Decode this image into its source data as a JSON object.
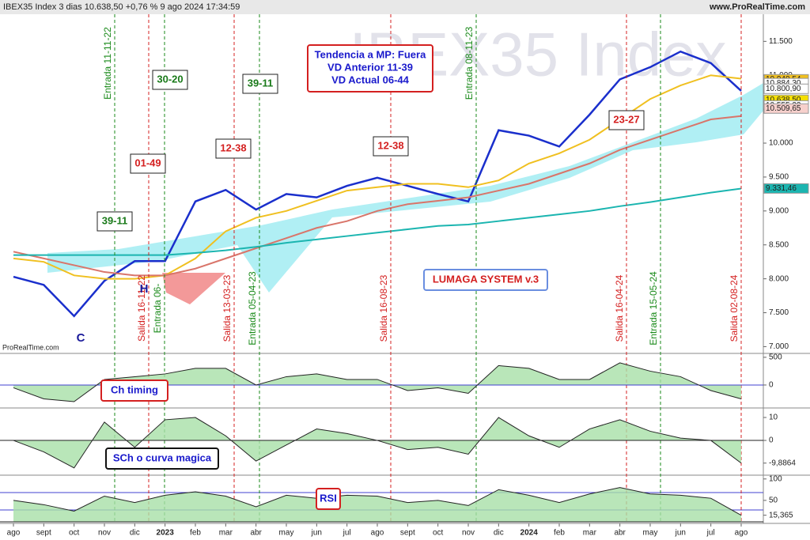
{
  "header": {
    "title": "IBEX35 Index 3 dias 10.638,50 +0,76 % 9 ago 2024 17:34:59",
    "site": "www.ProRealTime.com",
    "credit": "ProRealTime.com",
    "watermark": "IBEX35 Index"
  },
  "chart_data": [
    {
      "type": "line",
      "categories": [
        "ago",
        "sept",
        "oct",
        "nov",
        "dic",
        "2023",
        "feb",
        "mar",
        "abr",
        "may",
        "jun",
        "jul",
        "ago",
        "sept",
        "oct",
        "nov",
        "dic",
        "2024",
        "feb",
        "mar",
        "abr",
        "may",
        "jun",
        "jul",
        "ago"
      ],
      "series": [
        {
          "color": "#1a2fcc",
          "values": [
            8030,
            7910,
            7450,
            7970,
            8260,
            8260,
            9140,
            9310,
            9020,
            9250,
            9200,
            9370,
            9490,
            9370,
            9250,
            9140,
            10190,
            10110,
            9950,
            10420,
            10940,
            11120,
            11350,
            11180,
            10770
          ]
        },
        {
          "color": "#f0c020",
          "values": [
            8300,
            8250,
            8050,
            8000,
            8000,
            8050,
            8300,
            8700,
            8900,
            9000,
            9150,
            9300,
            9350,
            9400,
            9400,
            9350,
            9450,
            9700,
            9850,
            10050,
            10350,
            10650,
            10850,
            11000,
            10950
          ]
        },
        {
          "color": "#d9756a",
          "values": [
            8400,
            8300,
            8200,
            8100,
            8050,
            8050,
            8150,
            8300,
            8450,
            8600,
            8750,
            8850,
            9000,
            9100,
            9150,
            9200,
            9300,
            9400,
            9550,
            9700,
            9900,
            10050,
            10200,
            10350,
            10400
          ]
        },
        {
          "color": "#1bb5b0",
          "values": [
            8350,
            8350,
            8350,
            8350,
            8350,
            8350,
            8380,
            8420,
            8470,
            8530,
            8580,
            8630,
            8680,
            8730,
            8780,
            8800,
            8850,
            8900,
            8950,
            9000,
            9070,
            9130,
            9200,
            9270,
            9330
          ]
        }
      ],
      "ylim": [
        6900,
        11900
      ],
      "yticks": [
        {
          "value": 7000,
          "label": "7.000"
        },
        {
          "value": 7500,
          "label": "7.500"
        },
        {
          "value": 8000,
          "label": "8.000"
        },
        {
          "value": 8500,
          "label": "8.500"
        },
        {
          "value": 9000,
          "label": "9.000"
        },
        {
          "value": 9500,
          "label": "9.500"
        },
        {
          "value": 10000,
          "label": "10.000"
        },
        {
          "value": 10500,
          "label": "10.500"
        },
        {
          "value": 11000,
          "label": "11.000"
        },
        {
          "value": 11500,
          "label": "11.500"
        }
      ],
      "last_labels": [
        {
          "value": 10940.54,
          "label": "10.940,54",
          "color": "#f0c020"
        },
        {
          "value": 10884.3,
          "label": "10.884,30",
          "color": "#ffffff"
        },
        {
          "value": 10800.9,
          "label": "10.800,90",
          "color": "#ffffff"
        },
        {
          "value": 10638.5,
          "label": "10.638,50",
          "color": "#f5e000"
        },
        {
          "value": 10555.23,
          "label": "10.555,23",
          "color": "#ffffff"
        },
        {
          "value": 10509.65,
          "label": "10.509,65",
          "color": "#f7d0cc"
        },
        {
          "value": 9331.46,
          "label": "9.331,46",
          "color": "#1bb5b0"
        }
      ],
      "signals": [
        {
          "label": "Entrada 11-11-22",
          "color": "#1a8a1a"
        },
        {
          "label": "Salida 16-11-22",
          "color": "#d42020"
        },
        {
          "label": "Entrada 06-",
          "color": "#1a8a1a"
        },
        {
          "label": "Salida 13-03-23",
          "color": "#d42020"
        },
        {
          "label": "Entrada 05-04-23",
          "color": "#1a8a1a"
        },
        {
          "label": "Salida 16-08-23",
          "color": "#d42020"
        },
        {
          "label": "Entrada 08-11-23",
          "color": "#1a8a1a"
        },
        {
          "label": "Salida 16-04-24",
          "color": "#d42020"
        },
        {
          "label": "Entrada 15-05-24",
          "color": "#1a8a1a"
        },
        {
          "label": "Salida 02-08-24",
          "color": "#d42020"
        }
      ],
      "boxes": [
        {
          "text": "30-20",
          "color": "#1a7a1a"
        },
        {
          "text": "39-11",
          "color": "#1a7a1a"
        },
        {
          "text": "01-49",
          "color": "#d42020"
        },
        {
          "text": "12-38",
          "color": "#d42020"
        },
        {
          "text": "39-11",
          "color": "#1a7a1a"
        },
        {
          "text": "12-38",
          "color": "#d42020"
        },
        {
          "text": "23-27",
          "color": "#d42020"
        }
      ],
      "trend_box": [
        "Tendencia a MP: Fuera",
        "VD Anterior 11-39",
        "VD Actual 06-44"
      ],
      "system": "LUMAGA SYSTEM v.3",
      "points": [
        "H",
        "C"
      ]
    },
    {
      "type": "area",
      "title": "Ch timing",
      "values": [
        -50,
        -250,
        -300,
        100,
        150,
        200,
        300,
        300,
        0,
        150,
        200,
        100,
        100,
        -100,
        -50,
        -150,
        350,
        300,
        100,
        100,
        400,
        250,
        150,
        -100,
        -250
      ],
      "ylim": [
        -400,
        570
      ],
      "yticks": [
        0,
        500
      ]
    },
    {
      "type": "area",
      "title": "SCh o curva magica",
      "values": [
        0,
        -5,
        -12,
        8,
        -3,
        9,
        10,
        2,
        -9,
        -2,
        5,
        3,
        0,
        -4,
        -3,
        -6,
        10,
        2,
        -3,
        5,
        9,
        4,
        1,
        0,
        -9.8864
      ],
      "ylim": [
        -14.8,
        13.8
      ],
      "yticks": [
        10,
        0,
        {
          "value": -9.8864,
          "label": "-9,8864"
        }
      ]
    },
    {
      "type": "area",
      "title": "RSI",
      "values": [
        50,
        40,
        25,
        60,
        45,
        62,
        70,
        60,
        35,
        62,
        55,
        62,
        60,
        45,
        50,
        38,
        75,
        62,
        45,
        65,
        80,
        65,
        62,
        55,
        15.365
      ],
      "ylim": [
        0,
        107
      ],
      "yticks": [
        100,
        50,
        {
          "value": 15.365,
          "label": "15,365"
        }
      ]
    }
  ]
}
